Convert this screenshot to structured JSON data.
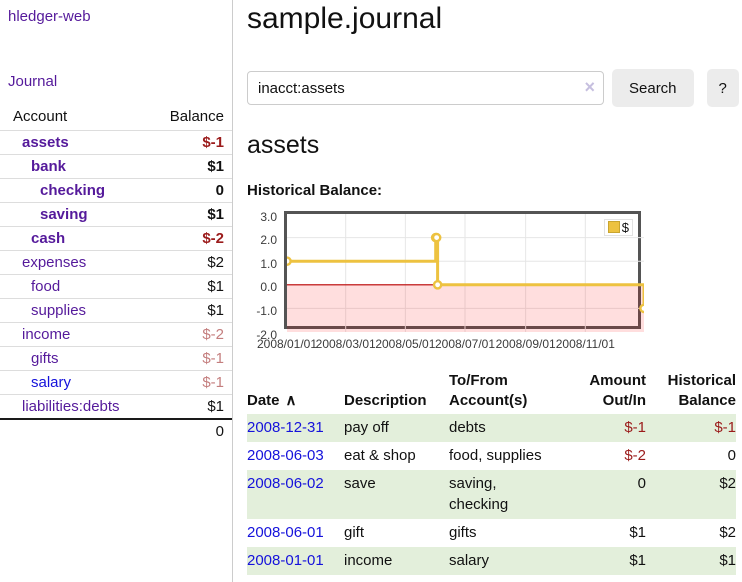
{
  "app": {
    "title": "hledger-web"
  },
  "colors": {
    "link_purple": "#551a9b",
    "link_blue": "#1512db",
    "negative_strong": "#9b1b1b",
    "negative_soft": "#c47e7e",
    "row_stripe_green": "#e3efdb",
    "chart_line_gold": "#edc240",
    "chart_negative_fill": "rgba(255,0,0,0.13)",
    "chart_zero_line": "#bb0000",
    "chart_grid": "#e6e6e6",
    "chart_border": "#545454"
  },
  "sidebar": {
    "journal_label": "Journal",
    "accounts_table": {
      "headers": {
        "account": "Account",
        "balance": "Balance"
      },
      "rows": [
        {
          "name": "assets",
          "depth": 1,
          "bold": true,
          "balance": "$-1",
          "tone": "neg"
        },
        {
          "name": "bank",
          "depth": 2,
          "bold": true,
          "balance": "$1",
          "tone": "pos"
        },
        {
          "name": "checking",
          "depth": 3,
          "bold": true,
          "balance": "0",
          "tone": "pos"
        },
        {
          "name": "saving",
          "depth": 3,
          "bold": true,
          "balance": "$1",
          "tone": "pos"
        },
        {
          "name": "cash",
          "depth": 2,
          "bold": true,
          "balance": "$-2",
          "tone": "neg"
        },
        {
          "name": "expenses",
          "depth": 1,
          "bold": false,
          "balance": "$2",
          "tone": "pos"
        },
        {
          "name": "food",
          "depth": 2,
          "bold": false,
          "balance": "$1",
          "tone": "pos"
        },
        {
          "name": "supplies",
          "depth": 2,
          "bold": false,
          "balance": "$1",
          "tone": "pos"
        },
        {
          "name": "income",
          "depth": 1,
          "bold": false,
          "balance": "$-2",
          "tone": "negsoft"
        },
        {
          "name": "gifts",
          "depth": 2,
          "bold": false,
          "balance": "$-1",
          "tone": "negsoft"
        },
        {
          "name": "salary",
          "depth": 2,
          "bold": false,
          "balance": "$-1",
          "tone": "negsoft",
          "link_color": "blue"
        },
        {
          "name": "liabilities:debts",
          "depth": 1,
          "bold": false,
          "balance": "$1",
          "tone": "pos"
        }
      ],
      "total": "0"
    }
  },
  "main": {
    "title": "sample.journal",
    "search": {
      "value": "inacct:assets",
      "clear_icon": "×",
      "button_label": "Search",
      "help_label": "?"
    },
    "account_heading": "assets",
    "chart_label": "Historical Balance:"
  },
  "chart_data": {
    "type": "line",
    "step": true,
    "title": "Historical Balance",
    "legend": "$",
    "legend_position": "top-right",
    "grid": true,
    "xlim": [
      "2008-01-01",
      "2008-12-31"
    ],
    "ylim": [
      -2,
      3
    ],
    "y_ticks": [
      "3.0",
      "2.0",
      "1.0",
      "0.0",
      "-1.0",
      "-2.0"
    ],
    "x_ticks": [
      "2008/01/01",
      "2008/03/01",
      "2008/05/01",
      "2008/07/01",
      "2008/09/01",
      "2008/11/01"
    ],
    "series": [
      {
        "name": "$",
        "points": [
          {
            "x": "2008-01-01",
            "y": 1
          },
          {
            "x": "2008-06-01",
            "y": 2
          },
          {
            "x": "2008-06-02",
            "y": 2
          },
          {
            "x": "2008-06-03",
            "y": 0
          },
          {
            "x": "2008-12-31",
            "y": -1
          }
        ]
      }
    ]
  },
  "register_table": {
    "headers": [
      {
        "label": "Date",
        "align": "l",
        "sort_icon": "∧"
      },
      {
        "label": "Description",
        "align": "l"
      },
      {
        "label": "To/From Account(s)",
        "align": "l"
      },
      {
        "label": "Amount Out/In",
        "align": "r"
      },
      {
        "label": "Historical Balance",
        "align": "r"
      }
    ],
    "rows": [
      {
        "date": "2008-12-31",
        "description": "pay off",
        "accounts": "debts",
        "amount": "$-1",
        "amount_neg": true,
        "balance": "$-1",
        "balance_neg": true
      },
      {
        "date": "2008-06-03",
        "description": "eat & shop",
        "accounts": "food, supplies",
        "amount": "$-2",
        "amount_neg": true,
        "balance": "0",
        "balance_neg": false
      },
      {
        "date": "2008-06-02",
        "description": "save",
        "accounts": "saving, checking",
        "amount": "0",
        "amount_neg": false,
        "balance": "$2",
        "balance_neg": false
      },
      {
        "date": "2008-06-01",
        "description": "gift",
        "accounts": "gifts",
        "amount": "$1",
        "amount_neg": false,
        "balance": "$2",
        "balance_neg": false
      },
      {
        "date": "2008-01-01",
        "description": "income",
        "accounts": "salary",
        "amount": "$1",
        "amount_neg": false,
        "balance": "$1",
        "balance_neg": false
      }
    ]
  }
}
